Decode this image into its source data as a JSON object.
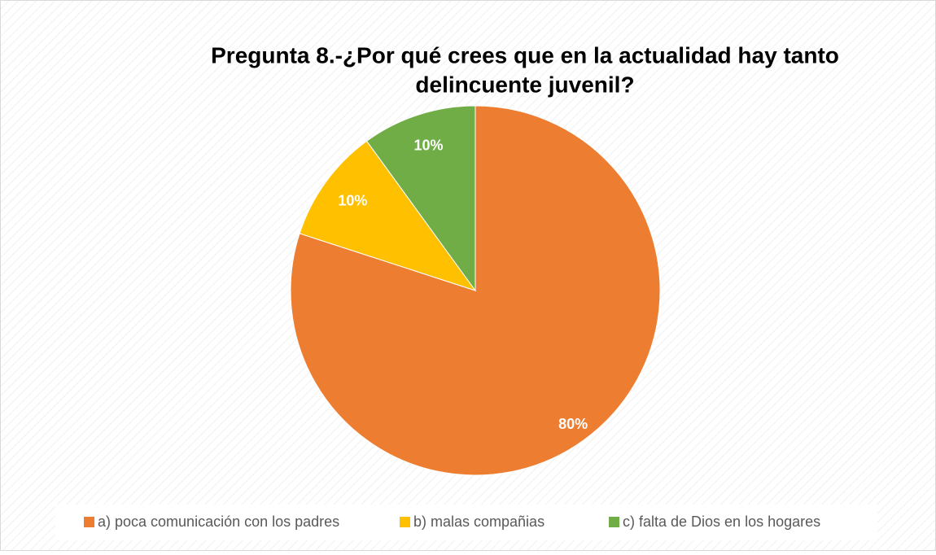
{
  "chart_data": {
    "type": "pie",
    "title": [
      "Pregunta 8.-¿Por qué crees que en la actualidad hay tanto",
      "delincuente juvenil?"
    ],
    "categories": [
      "a) poca comunicación con los padres",
      "b) malas compañias",
      "c) falta de Dios en los hogares"
    ],
    "values": [
      80,
      10,
      10
    ],
    "value_labels": [
      "80%",
      "10%",
      "10%"
    ],
    "colors": [
      "#ed7d31",
      "#ffc000",
      "#70ad47"
    ],
    "legend": "bottom"
  }
}
